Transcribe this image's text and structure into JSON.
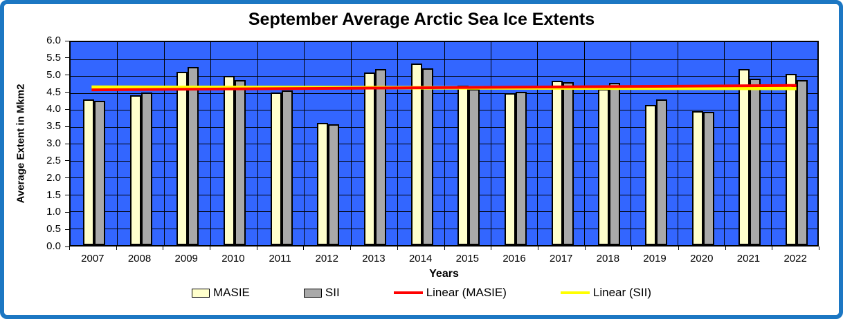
{
  "chart_data": {
    "type": "bar",
    "title": "September Average Arctic Sea Ice Extents",
    "xlabel": "Years",
    "ylabel": "Average Extent in Mkm2",
    "ylim": [
      0.0,
      6.0
    ],
    "ytick_step": 0.5,
    "yticks": [
      "0.0",
      "0.5",
      "1.0",
      "1.5",
      "2.0",
      "2.5",
      "3.0",
      "3.5",
      "4.0",
      "4.5",
      "5.0",
      "5.5",
      "6.0"
    ],
    "grid": true,
    "legend_position": "bottom",
    "plot_bg_color": "#3366FF",
    "frame_border_color": "#1C77C3",
    "categories": [
      "2007",
      "2008",
      "2009",
      "2010",
      "2011",
      "2012",
      "2013",
      "2014",
      "2015",
      "2016",
      "2017",
      "2018",
      "2019",
      "2020",
      "2021",
      "2022"
    ],
    "series": [
      {
        "name": "MASIE",
        "kind": "bar",
        "color": "#FFFFCC",
        "values": [
          4.3,
          4.42,
          5.12,
          5.0,
          4.52,
          3.62,
          5.1,
          5.36,
          4.71,
          4.49,
          4.85,
          4.62,
          4.15,
          3.96,
          5.2,
          5.07
        ]
      },
      {
        "name": "SII",
        "kind": "bar",
        "color": "#A9A9A9",
        "values": [
          4.27,
          4.52,
          5.27,
          4.87,
          4.57,
          3.57,
          5.2,
          5.22,
          4.62,
          4.54,
          4.81,
          4.8,
          4.31,
          3.93,
          4.92,
          4.87
        ]
      },
      {
        "name": "Linear (MASIE)",
        "kind": "trendline",
        "color": "#FF0000",
        "start": 4.59,
        "end": 4.72
      },
      {
        "name": "Linear (SII)",
        "kind": "trendline",
        "color": "#FFFF00",
        "start": 4.67,
        "end": 4.63
      }
    ]
  }
}
